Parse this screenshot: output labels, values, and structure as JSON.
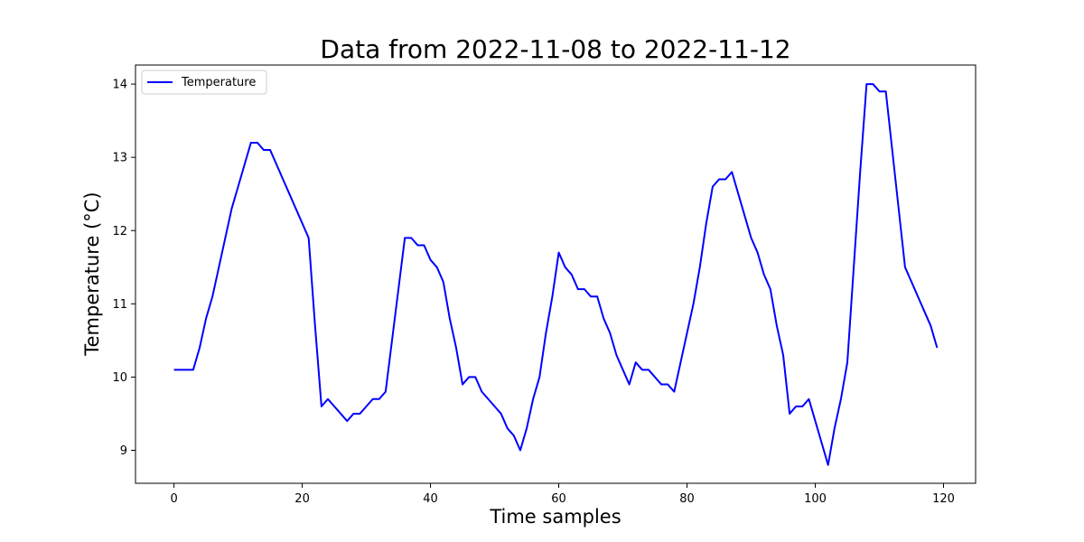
{
  "chart_data": {
    "type": "line",
    "title": "Data from 2022-11-08 to 2022-11-12",
    "xlabel": "Time samples",
    "ylabel": "Temperature ($^\\circ$C)",
    "ylabel_display": "Temperature (°C)",
    "xlim": [
      -6,
      125
    ],
    "ylim": [
      8.55,
      14.26
    ],
    "xticks": [
      0,
      20,
      40,
      60,
      80,
      100,
      120
    ],
    "yticks": [
      9,
      10,
      11,
      12,
      13,
      14
    ],
    "grid": false,
    "legend_position": "top-left",
    "series": [
      {
        "name": "Temperature",
        "color": "#0000ff",
        "x": [
          0,
          1,
          2,
          3,
          4,
          5,
          6,
          7,
          8,
          9,
          10,
          11,
          12,
          13,
          14,
          15,
          16,
          17,
          18,
          19,
          20,
          21,
          22,
          23,
          24,
          25,
          26,
          27,
          28,
          29,
          30,
          31,
          32,
          33,
          34,
          35,
          36,
          37,
          38,
          39,
          40,
          41,
          42,
          43,
          44,
          45,
          46,
          47,
          48,
          49,
          50,
          51,
          52,
          53,
          54,
          55,
          56,
          57,
          58,
          59,
          60,
          61,
          62,
          63,
          64,
          65,
          66,
          67,
          68,
          69,
          70,
          71,
          72,
          73,
          74,
          75,
          76,
          77,
          78,
          79,
          80,
          81,
          82,
          83,
          84,
          85,
          86,
          87,
          88,
          89,
          90,
          91,
          92,
          93,
          94,
          95,
          96,
          97,
          98,
          99,
          100,
          101,
          102,
          103,
          104,
          105,
          106,
          107,
          108,
          109,
          110,
          111,
          112,
          113,
          114,
          115,
          116,
          117,
          118,
          119
        ],
        "y": [
          10.1,
          10.1,
          10.1,
          10.1,
          10.4,
          10.8,
          11.1,
          11.5,
          11.9,
          12.3,
          12.6,
          12.9,
          13.2,
          13.2,
          13.1,
          13.1,
          12.9,
          12.7,
          12.5,
          12.3,
          12.1,
          11.9,
          10.7,
          9.6,
          9.7,
          9.6,
          9.5,
          9.4,
          9.5,
          9.5,
          9.6,
          9.7,
          9.7,
          9.8,
          10.5,
          11.2,
          11.9,
          11.9,
          11.8,
          11.8,
          11.6,
          11.5,
          11.3,
          10.8,
          10.4,
          9.9,
          10.0,
          10.0,
          9.8,
          9.7,
          9.6,
          9.5,
          9.3,
          9.2,
          9.0,
          9.3,
          9.7,
          10.0,
          10.6,
          11.1,
          11.7,
          11.5,
          11.4,
          11.2,
          11.2,
          11.1,
          11.1,
          10.8,
          10.6,
          10.3,
          10.1,
          9.9,
          10.2,
          10.1,
          10.1,
          10.0,
          9.9,
          9.9,
          9.8,
          10.2,
          10.6,
          11.0,
          11.5,
          12.1,
          12.6,
          12.7,
          12.7,
          12.8,
          12.5,
          12.2,
          11.9,
          11.7,
          11.4,
          11.2,
          10.7,
          10.3,
          9.5,
          9.6,
          9.6,
          9.7,
          9.4,
          9.1,
          8.8,
          9.3,
          9.7,
          10.2,
          11.5,
          12.8,
          14.0,
          14.0,
          13.9,
          13.9,
          13.1,
          12.3,
          11.5,
          11.3,
          11.1,
          10.9,
          10.7,
          10.4
        ]
      }
    ]
  }
}
